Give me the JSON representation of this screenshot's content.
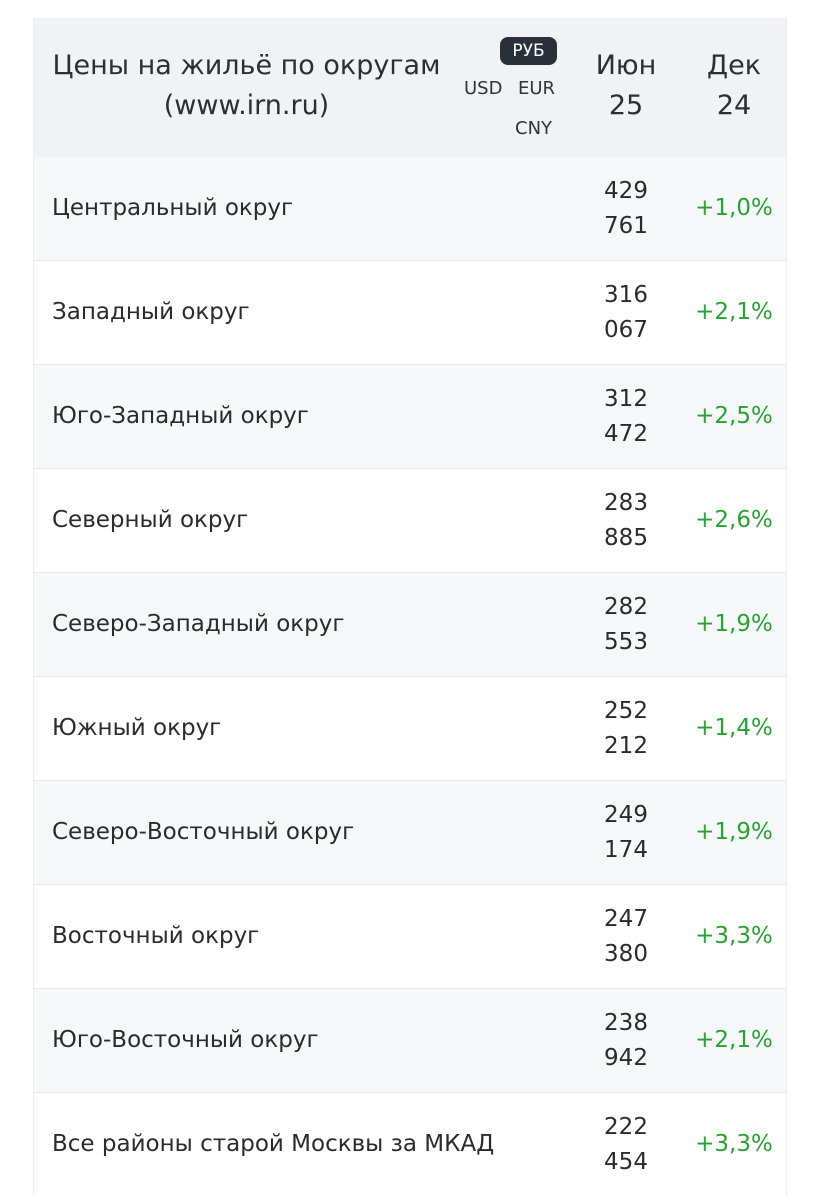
{
  "header": {
    "title_line1": "Цены на жильё по округам",
    "title_line2": "(www.irn.ru)",
    "currencies": {
      "active": "РУБ",
      "usd": "USD",
      "eur": "EUR",
      "cny": "CNY"
    },
    "col_current_line1": "Июн",
    "col_current_line2": "25",
    "col_prev_line1": "Дек",
    "col_prev_line2": "24"
  },
  "accent_colors": {
    "positive": "#26a331",
    "active_currency_bg": "#2a3039"
  },
  "rows": [
    {
      "name": "Центральный округ",
      "price_line1": "429",
      "price_line2": "761",
      "change": "+1,0%"
    },
    {
      "name": "Западный округ",
      "price_line1": "316",
      "price_line2": "067",
      "change": "+2,1%"
    },
    {
      "name": "Юго-Западный округ",
      "price_line1": "312",
      "price_line2": "472",
      "change": "+2,5%"
    },
    {
      "name": "Северный округ",
      "price_line1": "283",
      "price_line2": "885",
      "change": "+2,6%"
    },
    {
      "name": "Северо-Западный округ",
      "price_line1": "282",
      "price_line2": "553",
      "change": "+1,9%"
    },
    {
      "name": "Южный округ",
      "price_line1": "252",
      "price_line2": "212",
      "change": "+1,4%"
    },
    {
      "name": "Северо-Восточный округ",
      "price_line1": "249",
      "price_line2": "174",
      "change": "+1,9%"
    },
    {
      "name": "Восточный округ",
      "price_line1": "247",
      "price_line2": "380",
      "change": "+3,3%"
    },
    {
      "name": "Юго-Восточный округ",
      "price_line1": "238",
      "price_line2": "942",
      "change": "+2,1%"
    },
    {
      "name": "Все районы старой Москвы за МКАД",
      "price_line1": "222",
      "price_line2": "454",
      "change": "+3,3%"
    }
  ]
}
